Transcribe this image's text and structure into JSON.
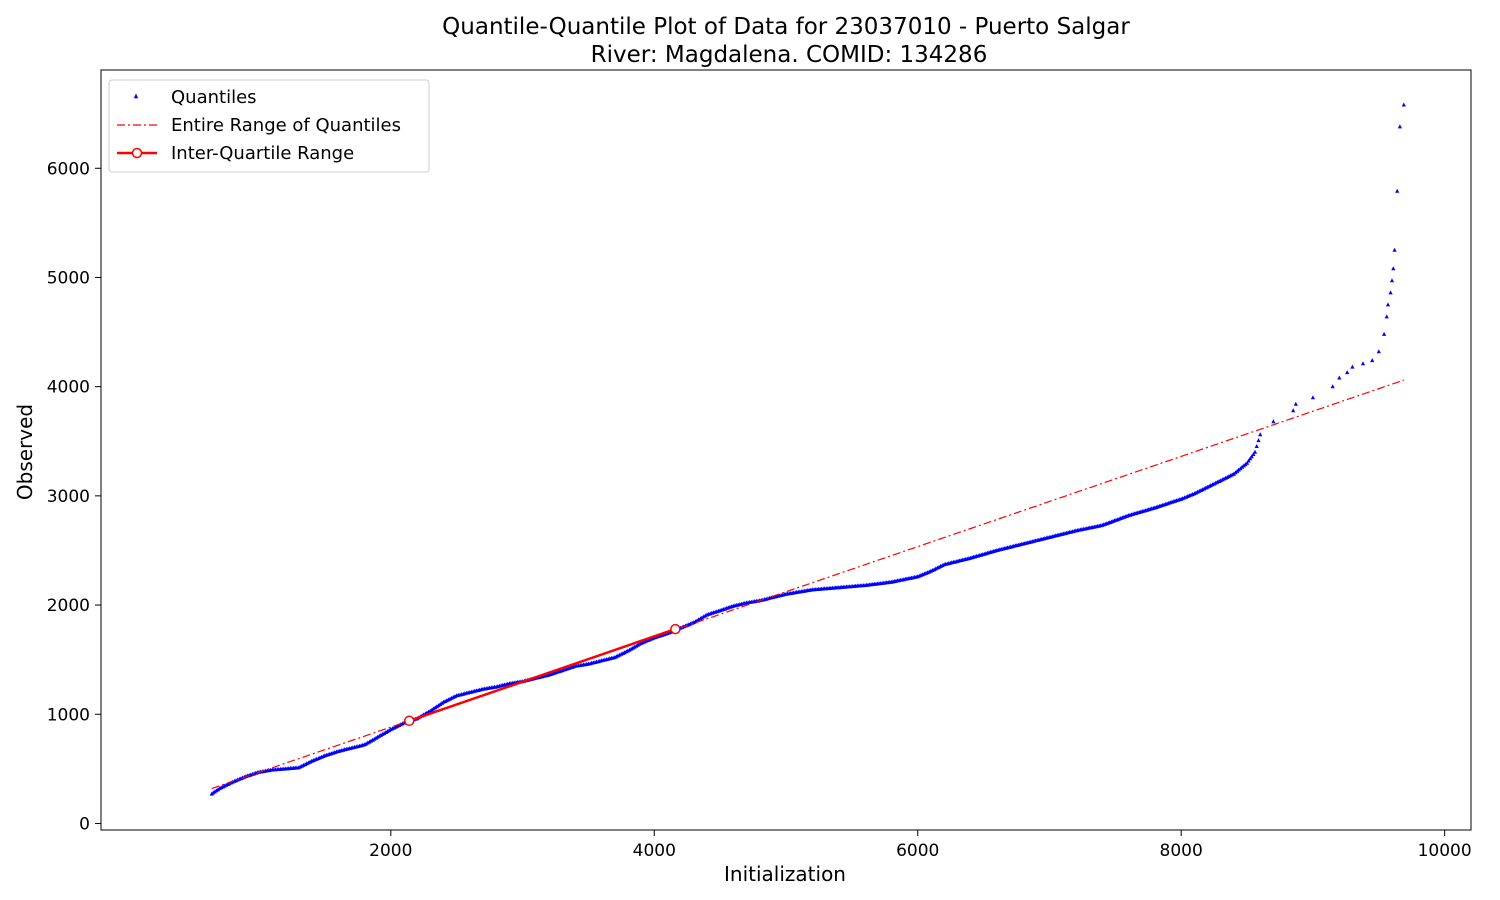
{
  "chart_data": {
    "type": "scatter",
    "title": "Quantile-Quantile Plot of Data for 23037010 - Puerto Salgar",
    "subtitle": "River: Magdalena. COMID: 134286",
    "xlabel": "Initialization",
    "ylabel": "Observed",
    "xlim": [
      -200,
      10200
    ],
    "ylim": [
      -60,
      6900
    ],
    "xticks": [
      2000,
      4000,
      6000,
      8000,
      10000
    ],
    "yticks": [
      0,
      1000,
      2000,
      3000,
      4000,
      5000,
      6000
    ],
    "grid": false,
    "legend_position": "top-left",
    "colors": {
      "quantiles": "#0000ff",
      "reference": "#ff0000"
    },
    "legend": [
      {
        "label": "Quantiles",
        "style": "marker"
      },
      {
        "label": "Entire Range of Quantiles",
        "style": "dash-dot"
      },
      {
        "label": "Inter-Quartile Range",
        "style": "line-circle"
      }
    ],
    "quantiles_curve": [
      [
        640,
        270
      ],
      [
        700,
        320
      ],
      [
        800,
        380
      ],
      [
        900,
        430
      ],
      [
        1000,
        470
      ],
      [
        1100,
        490
      ],
      [
        1200,
        500
      ],
      [
        1300,
        510
      ],
      [
        1400,
        570
      ],
      [
        1500,
        620
      ],
      [
        1600,
        660
      ],
      [
        1700,
        690
      ],
      [
        1800,
        720
      ],
      [
        1900,
        790
      ],
      [
        2000,
        860
      ],
      [
        2100,
        920
      ],
      [
        2200,
        960
      ],
      [
        2300,
        1030
      ],
      [
        2400,
        1110
      ],
      [
        2500,
        1170
      ],
      [
        2600,
        1200
      ],
      [
        2700,
        1230
      ],
      [
        2800,
        1250
      ],
      [
        2900,
        1280
      ],
      [
        3000,
        1300
      ],
      [
        3100,
        1330
      ],
      [
        3200,
        1360
      ],
      [
        3300,
        1400
      ],
      [
        3400,
        1440
      ],
      [
        3500,
        1460
      ],
      [
        3600,
        1490
      ],
      [
        3700,
        1520
      ],
      [
        3800,
        1580
      ],
      [
        3900,
        1650
      ],
      [
        4000,
        1700
      ],
      [
        4100,
        1740
      ],
      [
        4200,
        1790
      ],
      [
        4300,
        1840
      ],
      [
        4400,
        1910
      ],
      [
        4500,
        1950
      ],
      [
        4600,
        1990
      ],
      [
        4700,
        2020
      ],
      [
        4800,
        2040
      ],
      [
        4900,
        2070
      ],
      [
        5000,
        2100
      ],
      [
        5200,
        2140
      ],
      [
        5400,
        2160
      ],
      [
        5600,
        2180
      ],
      [
        5800,
        2210
      ],
      [
        6000,
        2260
      ],
      [
        6100,
        2310
      ],
      [
        6200,
        2370
      ],
      [
        6400,
        2430
      ],
      [
        6600,
        2500
      ],
      [
        6800,
        2560
      ],
      [
        7000,
        2620
      ],
      [
        7200,
        2680
      ],
      [
        7400,
        2730
      ],
      [
        7600,
        2820
      ],
      [
        7800,
        2890
      ],
      [
        8000,
        2970
      ],
      [
        8100,
        3020
      ],
      [
        8200,
        3080
      ],
      [
        8300,
        3140
      ],
      [
        8400,
        3200
      ],
      [
        8500,
        3300
      ],
      [
        8560,
        3400
      ],
      [
        8600,
        3560
      ]
    ],
    "quantiles_tail": [
      [
        8700,
        3680
      ],
      [
        8850,
        3780
      ],
      [
        8870,
        3840
      ],
      [
        9000,
        3900
      ],
      [
        9150,
        4000
      ],
      [
        9200,
        4080
      ],
      [
        9260,
        4130
      ],
      [
        9300,
        4180
      ],
      [
        9380,
        4210
      ],
      [
        9450,
        4240
      ],
      [
        9500,
        4320
      ],
      [
        9540,
        4480
      ],
      [
        9560,
        4640
      ],
      [
        9570,
        4750
      ],
      [
        9590,
        4860
      ],
      [
        9600,
        4970
      ],
      [
        9610,
        5080
      ],
      [
        9620,
        5250
      ],
      [
        9640,
        5790
      ],
      [
        9660,
        6380
      ],
      [
        9690,
        6580
      ]
    ],
    "entire_range_line": [
      [
        640,
        320
      ],
      [
        9690,
        4060
      ]
    ],
    "inter_quartile_line": [
      [
        2140,
        940
      ],
      [
        4160,
        1780
      ]
    ]
  }
}
